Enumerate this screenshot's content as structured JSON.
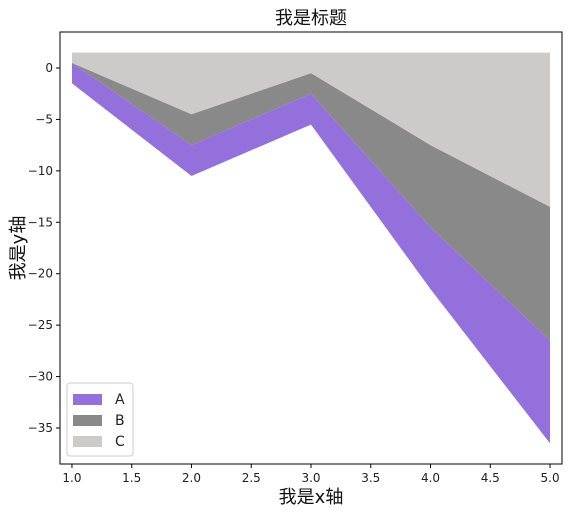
{
  "chart_data": {
    "type": "area",
    "title": "我是标题",
    "xlabel": "我是x轴",
    "ylabel": "我是y轴",
    "x": [
      1,
      2,
      3,
      4,
      5
    ],
    "xlim": [
      0.9,
      5.1
    ],
    "ylim": [
      -38.5,
      3.5
    ],
    "xticks": [
      1.0,
      1.5,
      2.0,
      2.5,
      3.0,
      3.5,
      4.0,
      4.5,
      5.0
    ],
    "xtick_labels": [
      "1.0",
      "1.5",
      "2.0",
      "2.5",
      "3.0",
      "3.5",
      "4.0",
      "4.5",
      "5.0"
    ],
    "yticks": [
      0,
      -5,
      -10,
      -15,
      -20,
      -25,
      -30,
      -35
    ],
    "ytick_labels": [
      "0",
      "−5",
      "−10",
      "−15",
      "−20",
      "−25",
      "−30",
      "−35"
    ],
    "legend_position": "lower-left",
    "series": [
      {
        "name": "A",
        "color": "#9370DB",
        "lower": [
          -1.5,
          -10.5,
          -5.5,
          -21.5,
          -36.5
        ],
        "upper": [
          0.5,
          -7.5,
          -2.5,
          -15.5,
          -26.5
        ]
      },
      {
        "name": "B",
        "color": "#8A8989",
        "lower": [
          0.5,
          -7.5,
          -2.5,
          -15.5,
          -26.5
        ],
        "upper": [
          0.5,
          -4.5,
          -0.5,
          -7.5,
          -13.5
        ]
      },
      {
        "name": "C",
        "color": "#CDCACA",
        "lower": [
          0.5,
          -4.5,
          -0.5,
          -7.5,
          -13.5
        ],
        "upper": [
          1.5,
          1.5,
          1.5,
          1.5,
          1.5
        ]
      }
    ]
  }
}
